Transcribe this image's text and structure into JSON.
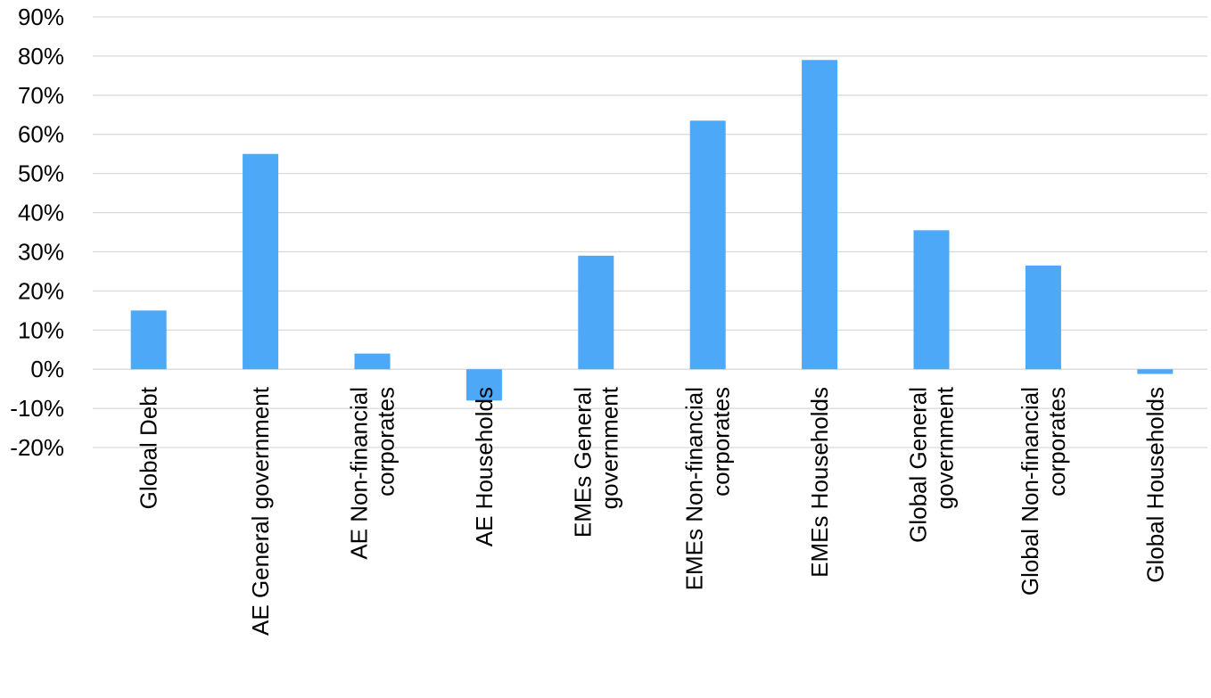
{
  "chart_data": {
    "type": "bar",
    "title": "",
    "xlabel": "",
    "ylabel": "",
    "categories": [
      [
        "Global Debt"
      ],
      [
        "AE General government"
      ],
      [
        "AE Non-financial",
        "corporates"
      ],
      [
        "AE Households"
      ],
      [
        "EMEs General",
        "government"
      ],
      [
        "EMEs Non-financial",
        "corporates"
      ],
      [
        "EMEs Households"
      ],
      [
        "Global General",
        "government"
      ],
      [
        "Global Non-financial",
        "corporates"
      ],
      [
        "Global Households"
      ]
    ],
    "values": [
      15,
      55,
      4,
      -8,
      29,
      63.5,
      79,
      35.5,
      26.5,
      -1.2
    ],
    "ylim": [
      -20,
      90
    ],
    "yticks": [
      -20,
      -10,
      0,
      10,
      20,
      30,
      40,
      50,
      60,
      70,
      80,
      90
    ],
    "ytick_format": "percent",
    "grid": true,
    "legend": "none",
    "bar_color": "#4da9f8",
    "grid_color": "#d9d9d9"
  }
}
